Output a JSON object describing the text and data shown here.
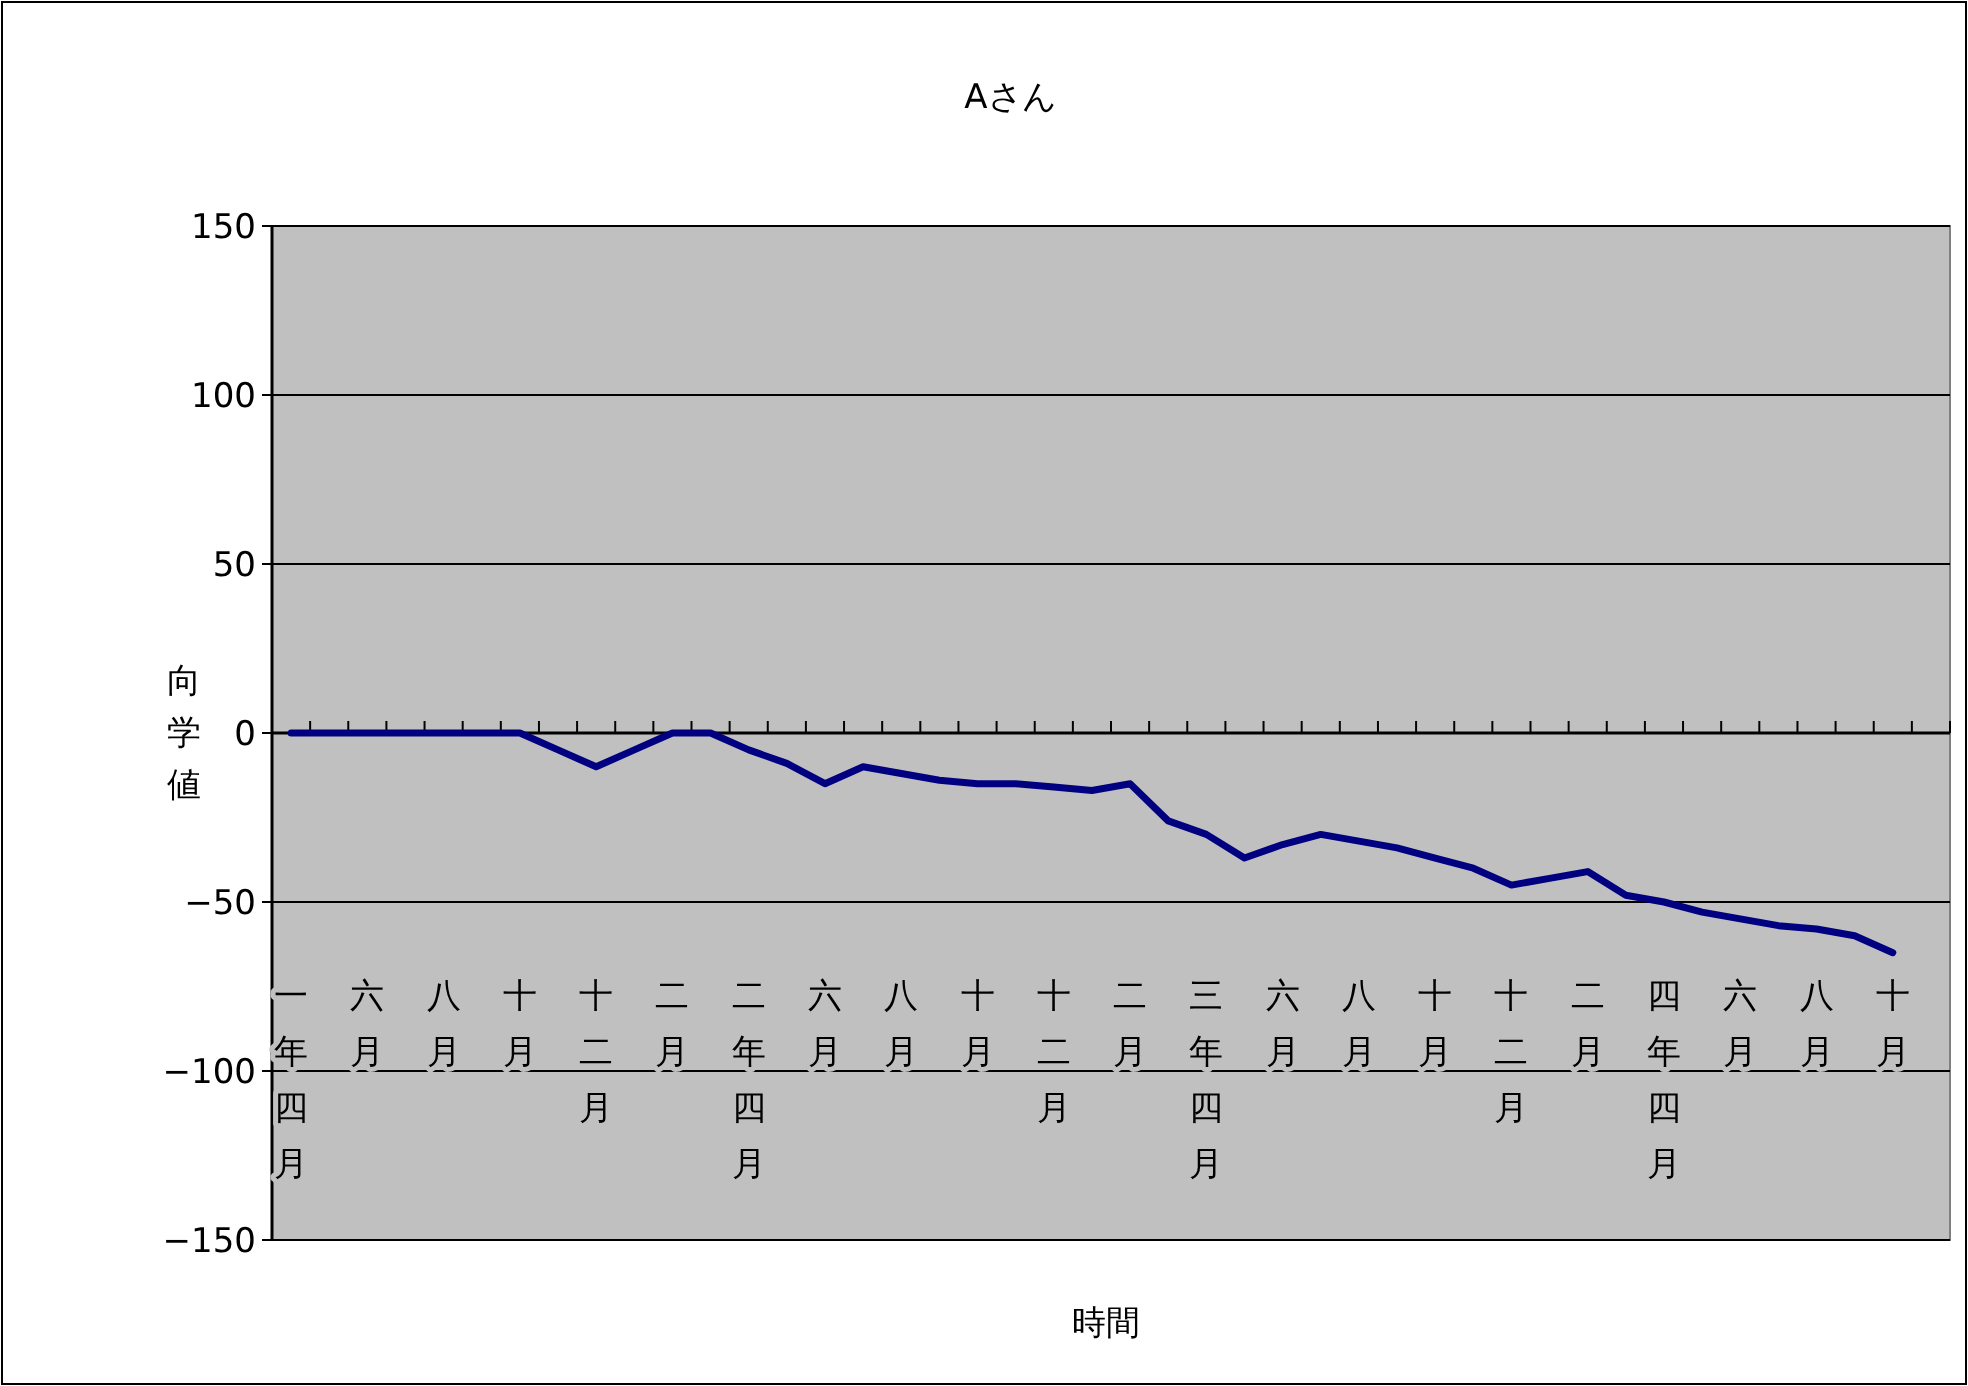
{
  "chart_data": {
    "type": "line",
    "title": "Aさん",
    "xlabel": "時間",
    "ylabel": "向学値",
    "categories": [
      "一年四月",
      null,
      "六月",
      null,
      "八月",
      null,
      "十月",
      null,
      "十二月",
      null,
      "二月",
      null,
      "二年四月",
      null,
      "六月",
      null,
      "八月",
      null,
      "十月",
      null,
      "十二月",
      null,
      "二月",
      null,
      "三年四月",
      null,
      "六月",
      null,
      "八月",
      null,
      "十月",
      null,
      "十二月",
      null,
      "二月",
      null,
      "四年四月",
      null,
      "六月",
      null,
      "八月",
      null,
      "十月",
      null
    ],
    "series": [
      {
        "color": "#000080",
        "values": [
          0,
          0,
          0,
          0,
          0,
          0,
          0,
          -5,
          -10,
          -5,
          0,
          0,
          -5,
          -9,
          -15,
          -10,
          -12,
          -14,
          -15,
          -15,
          -16,
          -17,
          -15,
          -26,
          -30,
          -37,
          -33,
          -30,
          -32,
          -34,
          -37,
          -40,
          -45,
          -43,
          -41,
          -48,
          -50,
          -53,
          -55,
          -57,
          -58,
          -60,
          -65,
          null
        ]
      }
    ],
    "ylim": [
      -150,
      150
    ],
    "yticks": [
      -150,
      -100,
      -50,
      0,
      50,
      100,
      150
    ],
    "grid": "y",
    "marker": "none",
    "line_style": "solid"
  }
}
